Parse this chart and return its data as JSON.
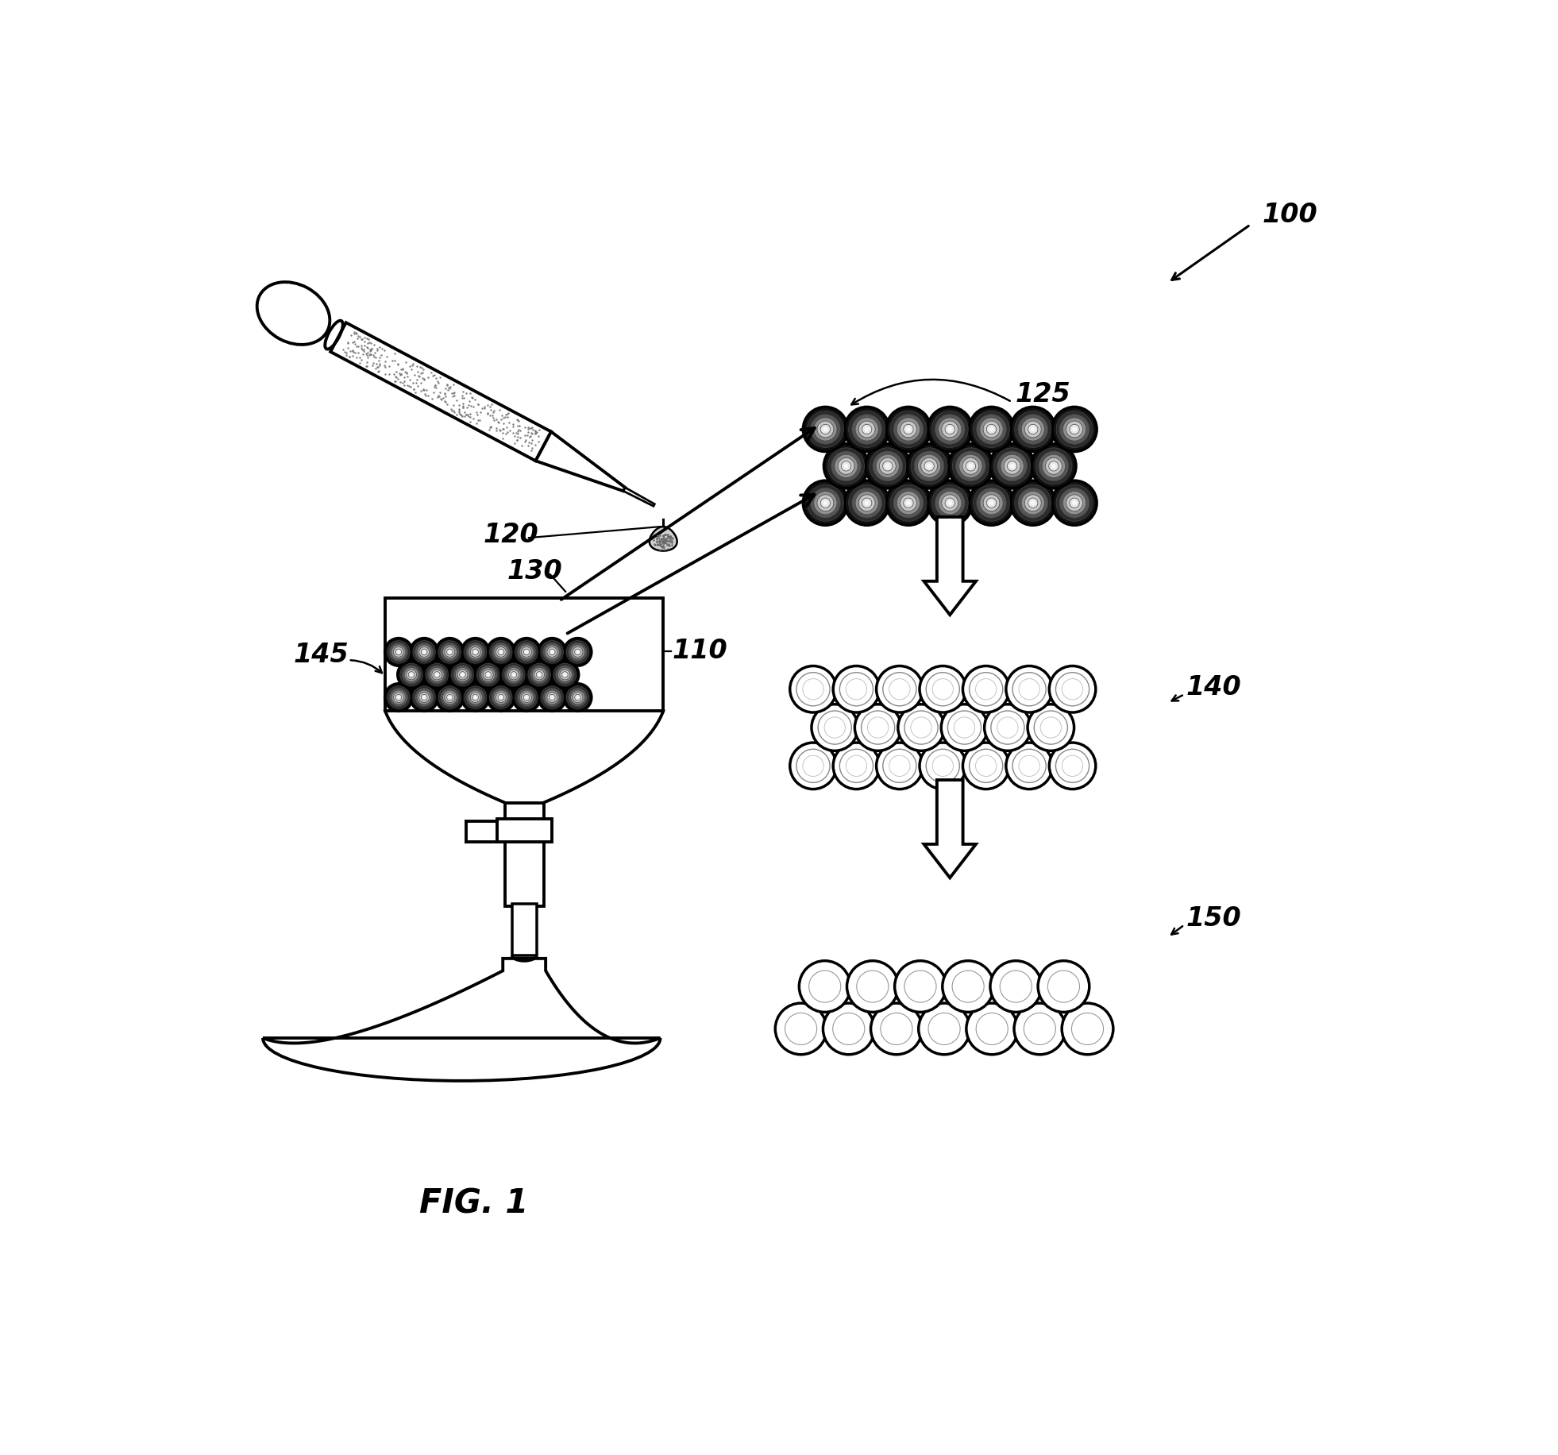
{
  "bg_color": "#ffffff",
  "line_color": "#000000",
  "lw_main": 2.8,
  "label_100": "100",
  "label_110": "110",
  "label_120": "120",
  "label_125": "125",
  "label_130": "130",
  "label_140": "140",
  "label_145": "145",
  "label_150": "150",
  "title": "FIG. 1",
  "fig_width": 19.62,
  "fig_height": 18.33,
  "label_fontsize": 24
}
